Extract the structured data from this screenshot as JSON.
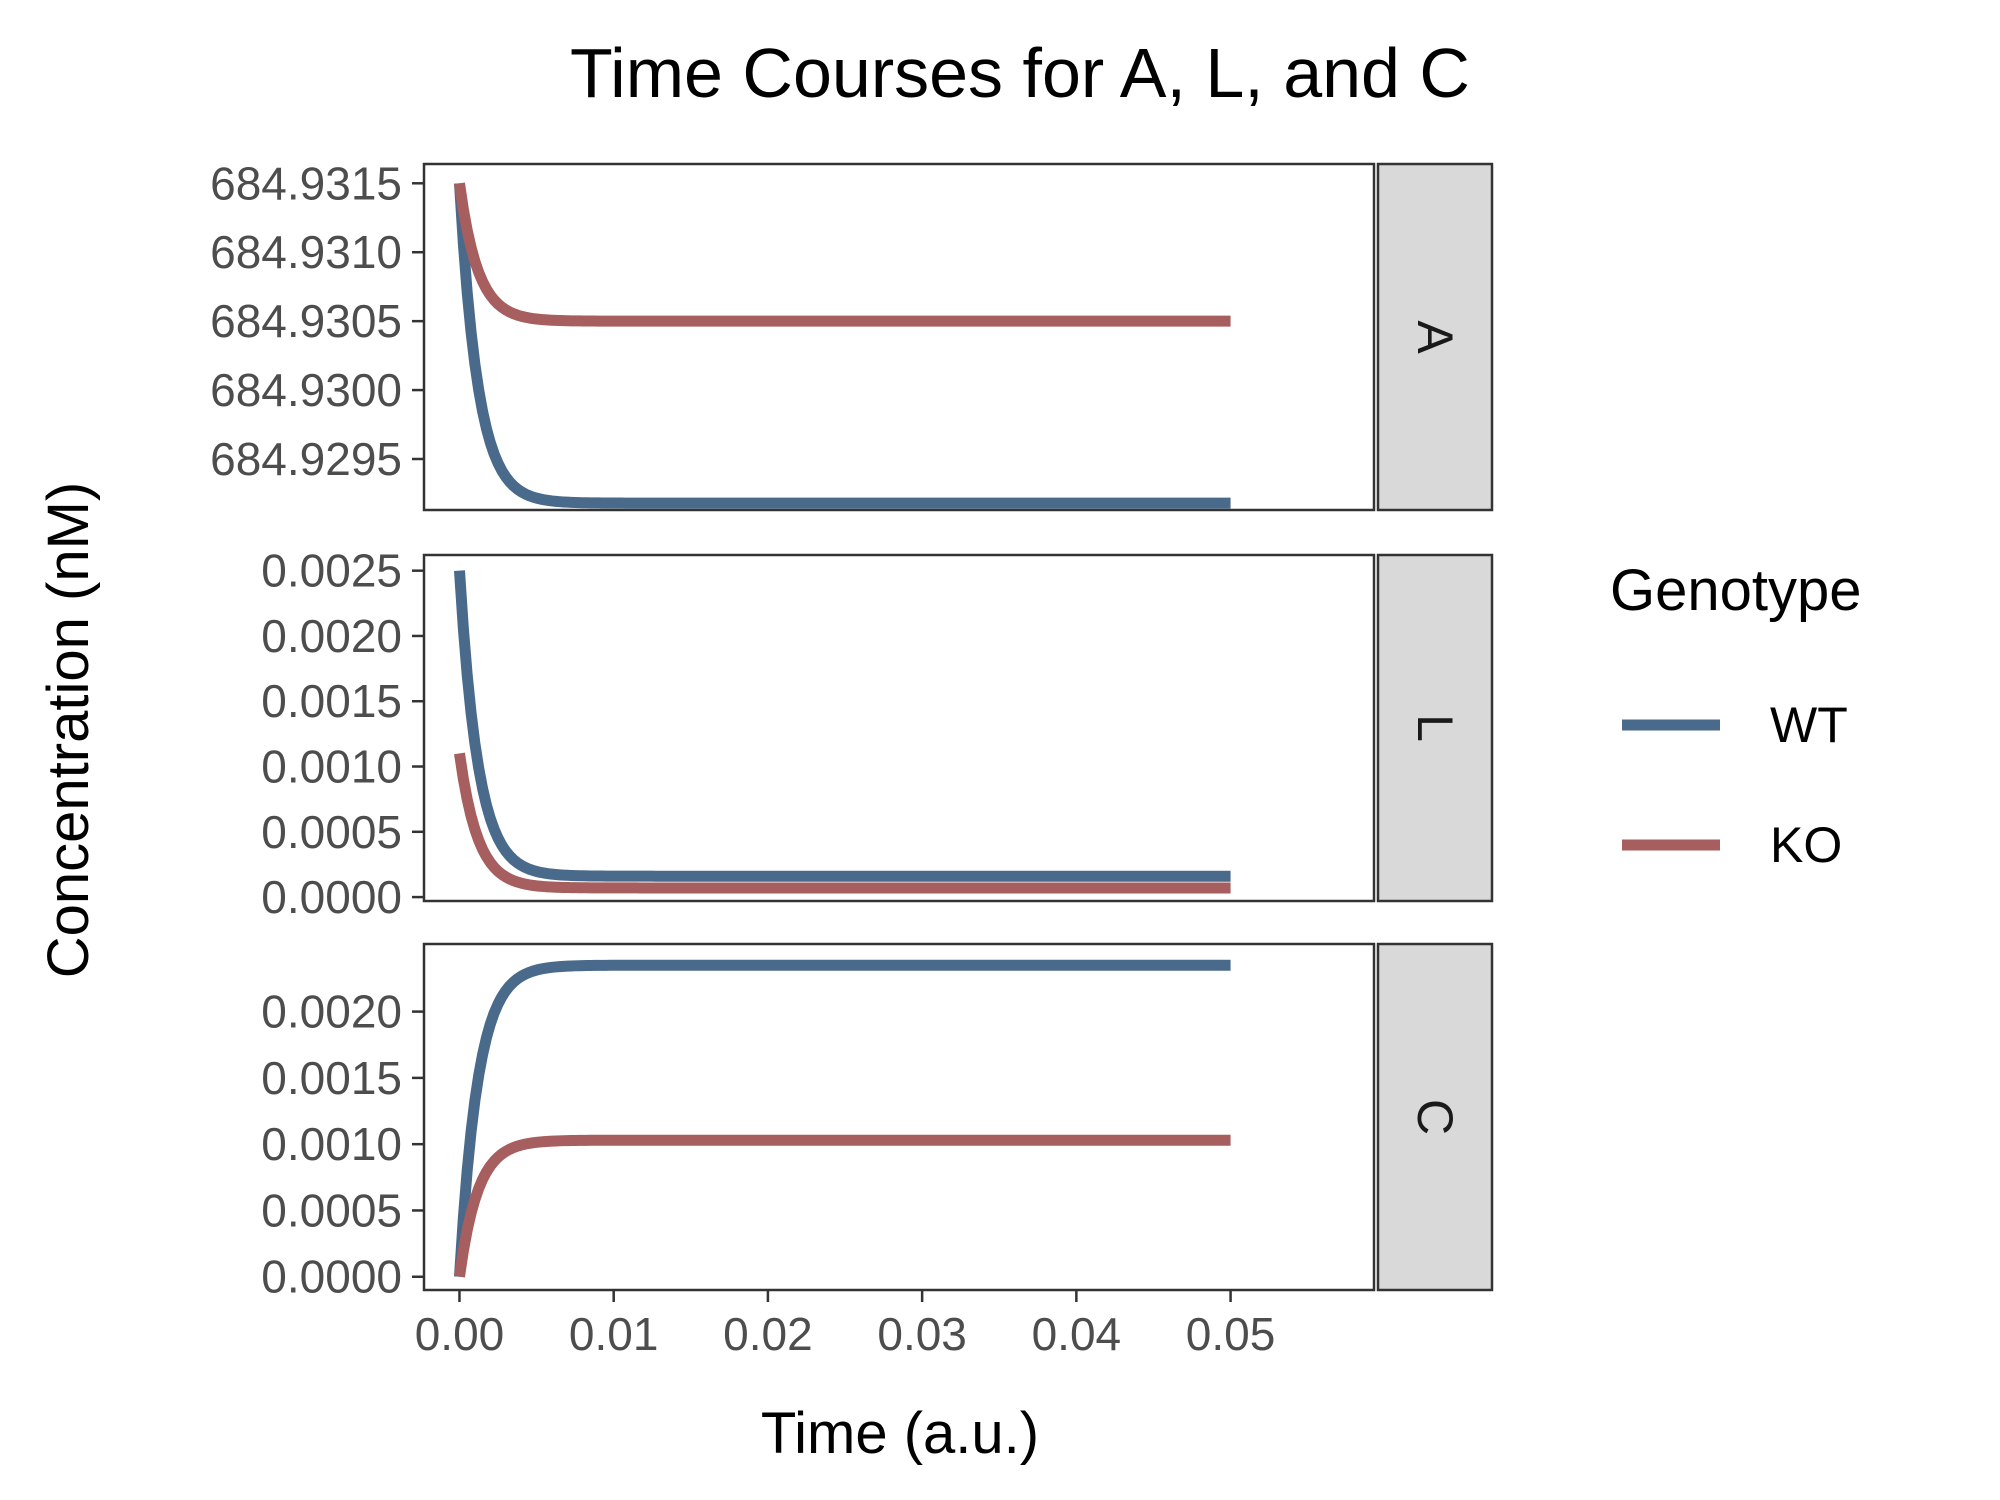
{
  "chart_data": {
    "type": "line",
    "title": "Time Courses for A, L, and C",
    "xlabel": "Time (a.u.)",
    "ylabel": "Concentration (nM)",
    "xlim": [
      -0.0023,
      0.0593
    ],
    "x_ticks": [
      0.0,
      0.01,
      0.02,
      0.03,
      0.04,
      0.05
    ],
    "x_tick_labels": [
      "0.00",
      "0.01",
      "0.02",
      "0.03",
      "0.04",
      "0.05"
    ],
    "grid": false,
    "legend": {
      "title": "Genotype",
      "placement": "right",
      "entries": [
        {
          "name": "WT",
          "color": "#4a6a8c"
        },
        {
          "name": "KO",
          "color": "#a65e5e"
        }
      ]
    },
    "series_colors": {
      "WT": "#4a6a8c",
      "KO": "#a65e5e"
    },
    "facets": [
      {
        "strip_label": "A",
        "ylim": [
          684.92913,
          684.93164
        ],
        "y_ticks": [
          684.9295,
          684.93,
          684.9305,
          684.931,
          684.9315
        ],
        "y_tick_labels": [
          "684.9295",
          "684.9300",
          "684.9305",
          "684.9310",
          "684.9315"
        ],
        "series": [
          {
            "name": "WT",
            "start": 684.9315,
            "end": 684.92918,
            "tau": 0.0012
          },
          {
            "name": "KO",
            "start": 684.9315,
            "end": 684.9305,
            "tau": 0.0012
          }
        ]
      },
      {
        "strip_label": "L",
        "ylim": [
          -3e-05,
          0.00262
        ],
        "y_ticks": [
          0.0,
          0.0005,
          0.001,
          0.0015,
          0.002,
          0.0025
        ],
        "y_tick_labels": [
          "0.0000",
          "0.0005",
          "0.0010",
          "0.0015",
          "0.0020",
          "0.0025"
        ],
        "series": [
          {
            "name": "WT",
            "start": 0.0025,
            "end": 0.00016,
            "tau": 0.0012
          },
          {
            "name": "KO",
            "start": 0.0011,
            "end": 7e-05,
            "tau": 0.0012
          }
        ]
      },
      {
        "strip_label": "C",
        "ylim": [
          -0.0001,
          0.00251
        ],
        "y_ticks": [
          0.0,
          0.0005,
          0.001,
          0.0015,
          0.002
        ],
        "y_tick_labels": [
          "0.0000",
          "0.0005",
          "0.0010",
          "0.0015",
          "0.0020"
        ],
        "series": [
          {
            "name": "WT",
            "start": 0.0,
            "end": 0.00235,
            "tau": 0.0012
          },
          {
            "name": "KO",
            "start": 0.0,
            "end": 0.00103,
            "tau": 0.0012
          }
        ]
      }
    ],
    "x_range_data": [
      0.0,
      0.05
    ]
  }
}
